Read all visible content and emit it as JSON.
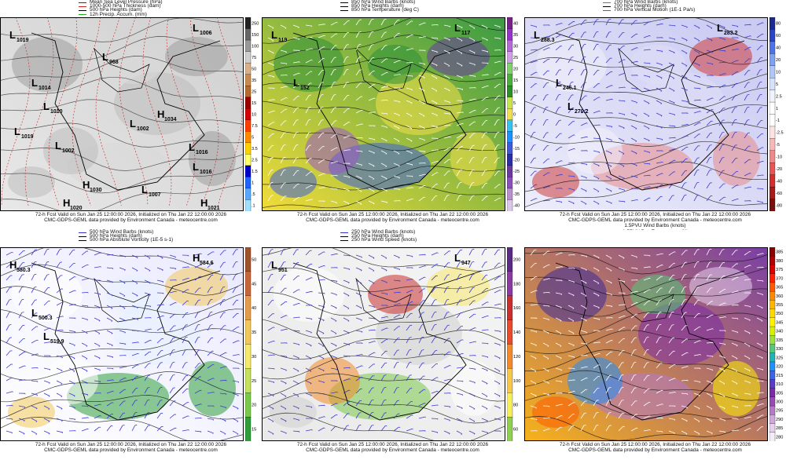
{
  "caption": {
    "line1": "72-h Fcst Valid on Sun Jan 25 12:00:00 2026, Initialized on Thu Jan 22 12:00:00 2026",
    "line2": "CMC-GDPS-GEML data provided by Environment Canada - meteocentre.com"
  },
  "panels": [
    {
      "legend": [
        "Mean Sea Level Pressure (hPa)",
        "1000-500 hPa Thickness (dam)",
        "500 hPa Heights (dam)",
        "12h Precip. Accum. (mm)"
      ],
      "legend_colors": [
        "#333366",
        "#cc2222",
        "#000000",
        "#22aa22"
      ],
      "caption_line2": "CMC-GDPS-GEML data provided by Environment Canada - meteocentre.com",
      "colorbar": [
        "250",
        "150",
        "100",
        "75",
        "50",
        "35",
        "25",
        "15",
        "10",
        "7.5",
        "5",
        "3.5",
        "2.5",
        "1.5",
        "1",
        ".5",
        ".1"
      ],
      "colorbar_colors": [
        "#222222",
        "#666666",
        "#999999",
        "#cfcfcf",
        "#d8b08a",
        "#c98a50",
        "#b46b2c",
        "#9b0000",
        "#d90000",
        "#ff3c00",
        "#ff8a00",
        "#ffd000",
        "#ffff66",
        "#0000cc",
        "#1e64ff",
        "#55aaff",
        "#a0e0ff"
      ],
      "labels": [
        {
          "t": "L",
          "v": "1006"
        },
        {
          "t": "L",
          "v": "1019"
        },
        {
          "t": "L",
          "v": "1014"
        },
        {
          "t": "L",
          "v": "1010"
        },
        {
          "t": "L",
          "v": "1019"
        },
        {
          "t": "L",
          "v": "1002"
        },
        {
          "t": "H",
          "v": "1034"
        },
        {
          "t": "L",
          "v": "1002"
        },
        {
          "t": "L",
          "v": "1016"
        },
        {
          "t": "H",
          "v": "1030"
        },
        {
          "t": "L",
          "v": "1007"
        },
        {
          "t": "H",
          "v": "1020"
        },
        {
          "t": "H",
          "v": "1021"
        },
        {
          "t": "L",
          "v": "1016"
        },
        {
          "t": "L",
          "v": "968"
        }
      ]
    },
    {
      "legend": [
        "850 hPa Wind Barbs (knots)",
        "850 hPa Heights (dam)",
        "850 hPa Temperature (deg C)"
      ],
      "legend_colors": [
        "#000000",
        "#000000",
        "#000000"
      ],
      "caption_line2": "CMC-GDPS-GEML data provided by Environment Canada - meteocentre.com",
      "colorbar": [
        "40",
        "35",
        "30",
        "25",
        "20",
        "15",
        "10",
        "5",
        "0",
        "-5",
        "-10",
        "-15",
        "-20",
        "-25",
        "-30",
        "-35",
        "-40"
      ],
      "colorbar_colors": [
        "#7b1f8a",
        "#9932cc",
        "#b36ad6",
        "#d0a0e6",
        "#7fd36a",
        "#4caf3c",
        "#2d8f2a",
        "#c8e64a",
        "#f0e050",
        "#31c4f0",
        "#1e90ff",
        "#3d5bd9",
        "#2a2fa8",
        "#6a3a9f",
        "#8a4fb8",
        "#b98fd0",
        "#ddc8ec"
      ],
      "labels": [
        {
          "t": "L",
          "v": "117"
        },
        {
          "t": "L",
          "v": "119"
        },
        {
          "t": "L",
          "v": "152"
        }
      ]
    },
    {
      "legend": [
        "700 hPa Wind Barbs (knots)",
        "700 hPa Heights (dam)",
        "700 hPa Vertical Motion (1E-1 Pa/s)"
      ],
      "legend_colors": [
        "#6666cc",
        "#000000",
        "#cc3333"
      ],
      "caption_line2": "CMC-GDPS-GEML data provided by Environment Canada - meteocentre.com",
      "caption_line3": "1.5PVU Wind Barbs (knots)",
      "caption_line4": "1.5PVU Pot. Temperature (K)",
      "colorbar": [
        "80",
        "60",
        "40",
        "20",
        "10",
        "5",
        "2.5",
        "1",
        "-1",
        "-2.5",
        "-5",
        "-10",
        "-20",
        "-40",
        "-60",
        "-80"
      ],
      "colorbar_colors": [
        "#1c2a90",
        "#2946c8",
        "#4d73e8",
        "#7fa1f2",
        "#aec6f8",
        "#d5e2fb",
        "#eef3fd",
        "#ffffff",
        "#ffffff",
        "#fde2e2",
        "#f8b8b8",
        "#f08888",
        "#e65656",
        "#d22f2f",
        "#a81c1c",
        "#7a0f0f"
      ],
      "labels": [
        {
          "t": "L",
          "v": "283.2"
        },
        {
          "t": "L",
          "v": "288.3"
        },
        {
          "t": "L",
          "v": "246.1"
        },
        {
          "t": "L",
          "v": "270.2"
        }
      ]
    },
    {
      "legend": [
        "500 hPa Wind Barbs (knots)",
        "500 hPa Heights (dam)",
        "500 hPa Absolute Vorticity (1E-5 s-1)"
      ],
      "legend_colors": [
        "#3333cc",
        "#000000",
        "#000000"
      ],
      "caption_line2": "CMC-GDPS-GEML data provided by Environment Canada - meteocentre.com",
      "colorbar": [
        "50",
        "45",
        "40",
        "35",
        "30",
        "25",
        "20",
        "15"
      ],
      "colorbar_colors": [
        "#a0522d",
        "#c8663a",
        "#e59c4a",
        "#f2c85a",
        "#f5e86a",
        "#c5e05a",
        "#7ac94a",
        "#2e9e3a"
      ],
      "labels": [
        {
          "t": "H",
          "v": "584.6"
        },
        {
          "t": "H",
          "v": "580.3"
        },
        {
          "t": "L",
          "v": "500.3"
        },
        {
          "t": "L",
          "v": "519.9"
        }
      ]
    },
    {
      "legend": [
        "250 hPa Wind Barbs (knots)",
        "250 hPa Heights (dam)",
        "250 hPa Wind Speed (knots)"
      ],
      "legend_colors": [
        "#3333cc",
        "#000000",
        "#000000"
      ],
      "caption_line2": "CMC-GDPS-GEML data provided by Environment Canada - meteocentre.com",
      "colorbar": [
        "200",
        "180",
        "160",
        "140",
        "120",
        "100",
        "80",
        "60"
      ],
      "colorbar_colors": [
        "#5a2a86",
        "#8a3aa0",
        "#c83030",
        "#e84a2a",
        "#f28a2a",
        "#f5c84a",
        "#f5f05a",
        "#8fd050"
      ],
      "labels": [
        {
          "t": "L",
          "v": "947"
        },
        {
          "t": "L",
          "v": "951"
        }
      ]
    },
    {
      "legend": [],
      "legend_colors": [],
      "caption_line2": "CMC-GDPS-GEML data provided by Environment Canada - meteocentre.com",
      "colorbar": [
        "385",
        "380",
        "375",
        "370",
        "365",
        "360",
        "355",
        "350",
        "345",
        "340",
        "335",
        "330",
        "325",
        "320",
        "315",
        "310",
        "305",
        "300",
        "295",
        "290",
        "285",
        "280"
      ],
      "colorbar_colors": [
        "#8b0000",
        "#b00000",
        "#d80000",
        "#ff2000",
        "#ff5a00",
        "#ff8c00",
        "#ffb400",
        "#ffd800",
        "#fff200",
        "#d8f000",
        "#9ee03c",
        "#54c878",
        "#1eb4b4",
        "#1e90ff",
        "#3c64e6",
        "#5a3cc8",
        "#7a2aaa",
        "#9a4ab4",
        "#b47ac8",
        "#d0a8dc",
        "#e6d0ee",
        "#f6ecf8"
      ],
      "labels": []
    }
  ]
}
